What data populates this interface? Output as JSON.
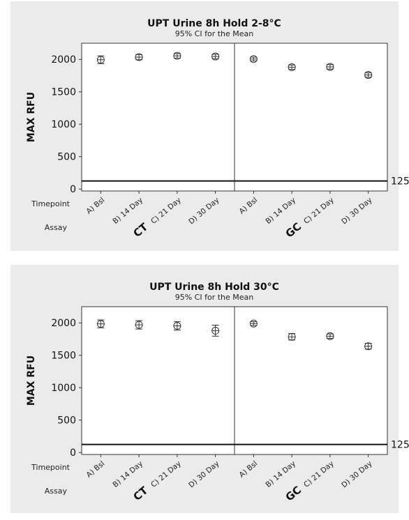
{
  "colors": {
    "panel_bg": "#ebebeb",
    "plot_bg": "#ffffff",
    "ink": "#333333"
  },
  "chart_data": [
    {
      "type": "scatter",
      "title": "UPT Urine 8h Hold 2-8°C",
      "subtitle": "95% CI for the Mean",
      "ylabel": "MAX RFU",
      "ylim": [
        -30,
        2250
      ],
      "yticks": [
        0,
        500,
        1000,
        1500,
        2000
      ],
      "reference_line": {
        "value": 125,
        "label": "125"
      },
      "row_labels": [
        "Timepoint",
        "Assay"
      ],
      "groups": [
        {
          "name": "CT",
          "categories": [
            "A) Bsl",
            "B) 14 Day",
            "C) 21 Day",
            "D) 30 Day"
          ],
          "mean": [
            1995,
            2035,
            2055,
            2045
          ],
          "ci_low": [
            1935,
            1995,
            2020,
            2010
          ],
          "ci_high": [
            2055,
            2075,
            2090,
            2080
          ]
        },
        {
          "name": "GC",
          "categories": [
            "A) Bsl",
            "B) 14 Day",
            "C) 21 Day",
            "D) 30 Day"
          ],
          "mean": [
            2005,
            1880,
            1885,
            1760
          ],
          "ci_low": [
            1975,
            1845,
            1850,
            1725
          ],
          "ci_high": [
            2035,
            1915,
            1920,
            1795
          ]
        }
      ]
    },
    {
      "type": "scatter",
      "title": "UPT Urine 8h Hold 30°C",
      "subtitle": "95% CI for the Mean",
      "ylabel": "MAX RFU",
      "ylim": [
        -30,
        2250
      ],
      "yticks": [
        0,
        500,
        1000,
        1500,
        2000
      ],
      "reference_line": {
        "value": 125,
        "label": "125"
      },
      "row_labels": [
        "Timepoint",
        "Assay"
      ],
      "groups": [
        {
          "name": "CT",
          "categories": [
            "A) Bsl",
            "B) 14 Day",
            "C) 21 Day",
            "D) 30 Day"
          ],
          "mean": [
            1985,
            1970,
            1955,
            1880
          ],
          "ci_low": [
            1925,
            1905,
            1890,
            1795
          ],
          "ci_high": [
            2045,
            2035,
            2020,
            1965
          ]
        },
        {
          "name": "GC",
          "categories": [
            "A) Bsl",
            "B) 14 Day",
            "C) 21 Day",
            "D) 30 Day"
          ],
          "mean": [
            1990,
            1785,
            1795,
            1640
          ],
          "ci_low": [
            1960,
            1735,
            1760,
            1595
          ],
          "ci_high": [
            2020,
            1835,
            1830,
            1685
          ]
        }
      ]
    }
  ]
}
